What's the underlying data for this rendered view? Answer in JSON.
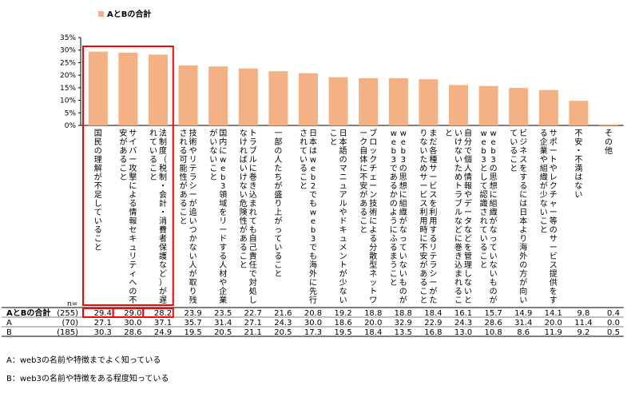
{
  "chart_data": {
    "type": "bar",
    "legend": {
      "label": "AとBの合計",
      "position": "top-left"
    },
    "ylim": [
      0,
      35
    ],
    "yticks": [
      "0%",
      "5%",
      "10%",
      "15%",
      "20%",
      "25%",
      "30%",
      "35%"
    ],
    "bar_color": "#f4b183",
    "highlight_color": "#ff0000",
    "highlight_indices": [
      0,
      1,
      2
    ],
    "categories": [
      "国民の理解が不足していること",
      "サイバー攻撃による情報セキュリティへの不安があること",
      "法制度（税制・会計・消費者保護など）が遅れていること",
      "技術やリテラシーが追いつかない人が取り残される可能性があること",
      "国内にweb3領域をリードする人材や企業がいないこと",
      "トラブルに巻き込まれても自己責任で対処しなければいけない危険性があること",
      "一部の人たちが盛り上がっていること",
      "日本はweb2でもweb3でも海外に先行されていること",
      "日本語のマニュアルやドキュメントが少ないこと",
      "ブロックチェーン技術による分散型ネットワーク自体に不安があること",
      "web3の思想に組織がなっていないものがweb3であるかのようにふるまうこと",
      "まだ各種サービスを利用するリテラシーがたりないためサービス利用時に不安があること",
      "自分で個人情報やデータなどを管理しないといけないためトラブルなどに巻き込まれること",
      "web3の思想に組織がなっていないものがweb3として認識されていること",
      "ビジネスをするには日本より海外の方が向いていること",
      "サポートやレクチャー等のサービス提供をする企業や組織が少ないこと",
      "不安・不満はない",
      "その他"
    ],
    "table_header_n": "n=",
    "series": [
      {
        "name": "AとBの合計",
        "n": "(255)",
        "values": [
          29.4,
          29.0,
          28.2,
          23.9,
          23.5,
          22.7,
          21.6,
          20.8,
          19.2,
          18.8,
          18.8,
          18.4,
          16.1,
          15.7,
          14.9,
          14.1,
          9.8,
          0.4
        ]
      },
      {
        "name": "A",
        "n": "(70)",
        "values": [
          27.1,
          30.0,
          37.1,
          35.7,
          31.4,
          27.1,
          24.3,
          30.0,
          18.6,
          20.0,
          32.9,
          22.9,
          24.3,
          28.6,
          31.4,
          20.0,
          11.4,
          0.0
        ]
      },
      {
        "name": "B",
        "n": "(185)",
        "values": [
          30.3,
          28.6,
          24.9,
          19.5,
          20.5,
          21.1,
          20.5,
          17.3,
          19.5,
          18.4,
          13.5,
          16.8,
          13.0,
          10.8,
          8.6,
          11.9,
          9.2,
          0.5
        ]
      }
    ]
  },
  "notes": {
    "a": "A：web3の名前や特徴までよく知っている",
    "b": "B：web3の名前や特徴をある程度知っている"
  }
}
